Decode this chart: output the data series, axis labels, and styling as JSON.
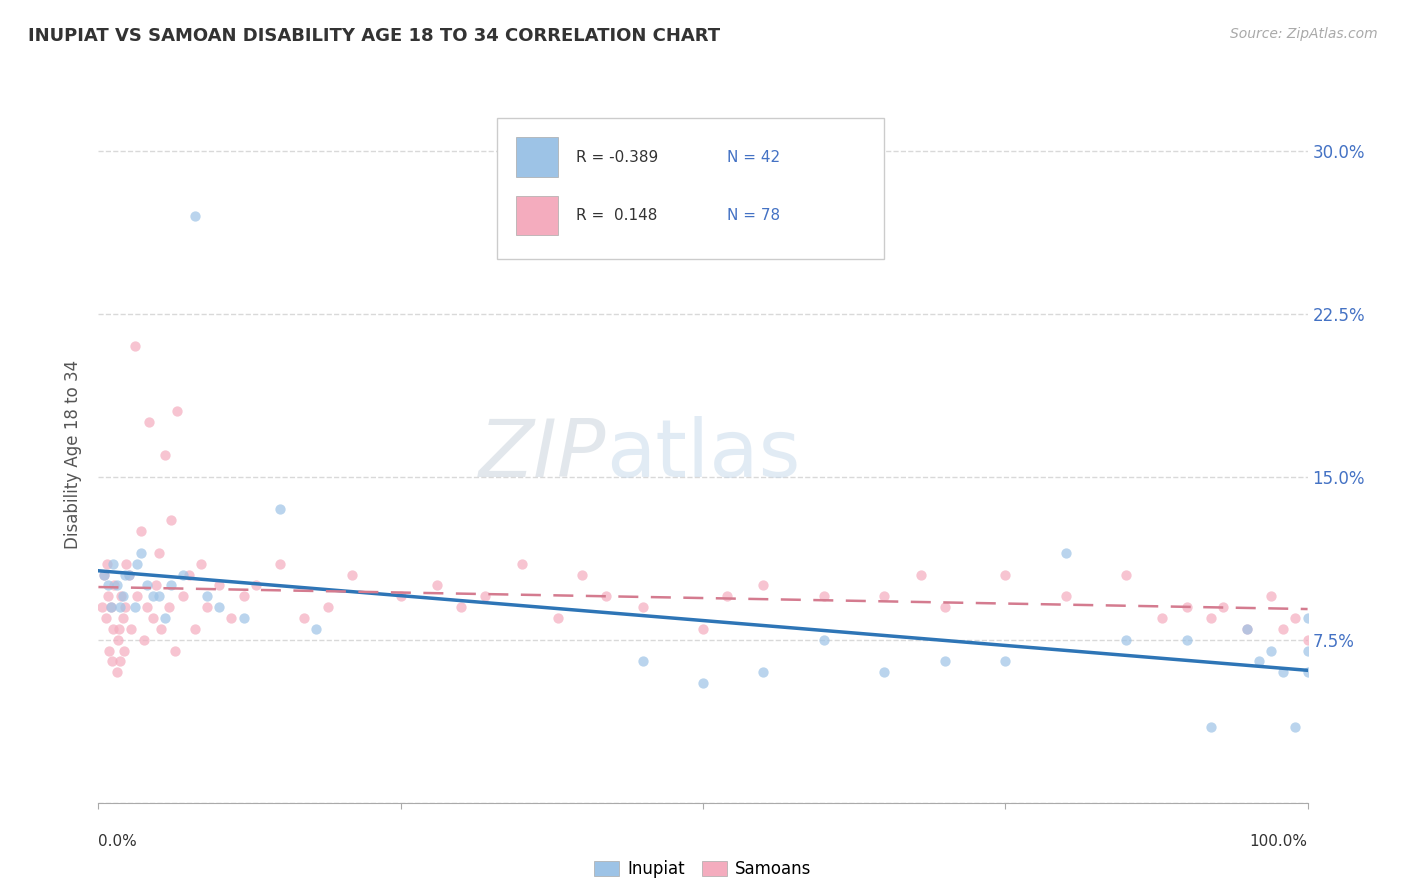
{
  "title": "INUPIAT VS SAMOAN DISABILITY AGE 18 TO 34 CORRELATION CHART",
  "source": "Source: ZipAtlas.com",
  "ylabel": "Disability Age 18 to 34",
  "xlim": [
    0,
    100
  ],
  "ylim": [
    0,
    32
  ],
  "yticks": [
    0,
    7.5,
    15.0,
    22.5,
    30.0
  ],
  "xticks": [
    0,
    25,
    50,
    75,
    100
  ],
  "xtick_labels_bottom": [
    "0.0%",
    "",
    "",
    "",
    "100.0%"
  ],
  "ytick_labels_right": [
    "",
    "7.5%",
    "15.0%",
    "22.5%",
    "30.0%"
  ],
  "inupiat_color": "#9dc3e6",
  "samoan_color": "#f4acbe",
  "inupiat_line_color": "#2e75b6",
  "samoan_line_color": "#d47b8f",
  "watermark_zip": "ZIP",
  "watermark_atlas": "atlas",
  "grid_color": "#d9d9d9",
  "inupiat_r": -0.389,
  "inupiat_n": 42,
  "samoan_r": 0.148,
  "samoan_n": 78,
  "seed": 12345
}
